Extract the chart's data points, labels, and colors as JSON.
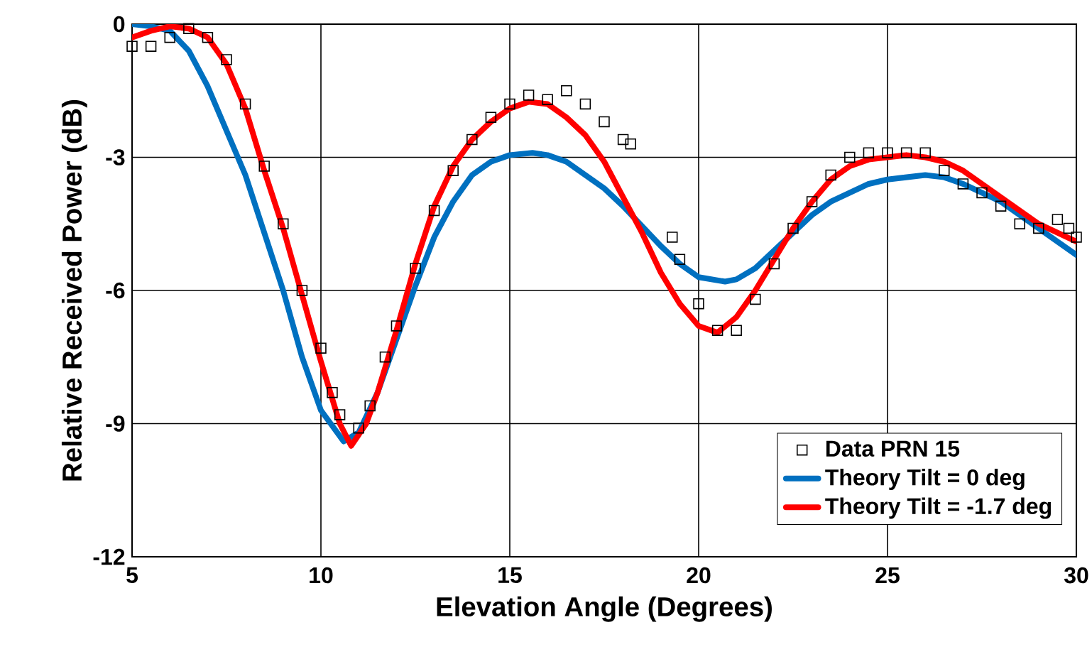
{
  "chart_data": {
    "type": "line",
    "xlabel": "Elevation Angle (Degrees)",
    "ylabel": "Relative Received Power (dB)",
    "xlim": [
      5,
      30
    ],
    "xticks": [
      5,
      10,
      15,
      20,
      25,
      30
    ],
    "ylim": [
      -12,
      0
    ],
    "yticks": [
      0,
      -3,
      -6,
      -9,
      -12
    ],
    "grid": true,
    "legend": "bottom right",
    "series": [
      {
        "name": "Data PRN 15",
        "type": "scatter",
        "marker": "square",
        "color": "#000000",
        "x": [
          5.0,
          5.5,
          6.0,
          6.5,
          7.0,
          7.5,
          8.0,
          8.5,
          9.0,
          9.5,
          10.0,
          10.3,
          10.5,
          11.0,
          11.3,
          11.7,
          12.0,
          12.5,
          13.0,
          13.5,
          14.0,
          14.5,
          15.0,
          15.5,
          16.0,
          16.5,
          17.0,
          17.5,
          18.0,
          18.2,
          18.7,
          19.3,
          19.5,
          20.0,
          20.5,
          21.0,
          21.5,
          22.0,
          22.5,
          23.0,
          23.5,
          24.0,
          24.5,
          25.0,
          25.5,
          26.0,
          26.5,
          27.0,
          27.5,
          28.0,
          28.5,
          29.0,
          29.5,
          29.8,
          30.0
        ],
        "values": [
          -0.5,
          -0.5,
          -0.3,
          -0.1,
          -0.3,
          -0.8,
          -1.8,
          -3.2,
          -4.5,
          -6.0,
          -7.3,
          -8.3,
          -8.8,
          -9.1,
          -8.6,
          -7.5,
          -6.8,
          -5.5,
          -4.2,
          -3.3,
          -2.6,
          -2.1,
          -1.8,
          -1.6,
          -1.7,
          -1.5,
          -1.8,
          -2.2,
          -2.6,
          -2.7,
          null,
          -4.8,
          -5.3,
          -6.3,
          -6.9,
          -6.9,
          -6.2,
          -5.4,
          -4.6,
          -4.0,
          -3.4,
          -3.0,
          -2.9,
          -2.9,
          -2.9,
          -2.9,
          -3.3,
          -3.6,
          -3.8,
          -4.1,
          -4.5,
          -4.6,
          -4.4,
          -4.6,
          -4.8
        ]
      },
      {
        "name": "Theory Tilt = 0 deg",
        "color": "#0070c0",
        "x": [
          5.0,
          5.5,
          6.0,
          6.5,
          7.0,
          7.5,
          8.0,
          8.5,
          9.0,
          9.5,
          10.0,
          10.6,
          11.0,
          11.5,
          12.0,
          12.5,
          13.0,
          13.5,
          14.0,
          14.5,
          15.0,
          15.6,
          16.0,
          16.5,
          17.0,
          17.5,
          18.0,
          18.5,
          19.0,
          19.5,
          20.0,
          20.7,
          21.0,
          21.5,
          22.0,
          22.5,
          23.0,
          23.5,
          24.0,
          24.5,
          25.0,
          26.0,
          26.5,
          27.0,
          27.5,
          28.0,
          28.5,
          29.0,
          29.5,
          30.0
        ],
        "values": [
          0,
          -0.05,
          -0.15,
          -0.6,
          -1.4,
          -2.4,
          -3.4,
          -4.7,
          -6.0,
          -7.5,
          -8.7,
          -9.4,
          -9.2,
          -8.3,
          -7.1,
          -5.9,
          -4.8,
          -4.0,
          -3.4,
          -3.1,
          -2.95,
          -2.9,
          -2.95,
          -3.1,
          -3.4,
          -3.7,
          -4.1,
          -4.55,
          -5.0,
          -5.4,
          -5.7,
          -5.8,
          -5.75,
          -5.5,
          -5.1,
          -4.7,
          -4.3,
          -4.0,
          -3.8,
          -3.6,
          -3.5,
          -3.4,
          -3.45,
          -3.6,
          -3.8,
          -4.0,
          -4.3,
          -4.6,
          -4.9,
          -5.2
        ]
      },
      {
        "name": "Theory Tilt = -1.7 deg",
        "color": "#ff0000",
        "x": [
          5.0,
          5.5,
          6.0,
          6.5,
          7.0,
          7.5,
          8.0,
          8.5,
          9.0,
          9.5,
          10.0,
          10.5,
          10.8,
          11.2,
          11.5,
          12.0,
          12.5,
          13.0,
          13.5,
          14.0,
          14.5,
          15.0,
          15.5,
          16.0,
          16.5,
          17.0,
          17.5,
          18.0,
          18.5,
          19.0,
          19.5,
          20.0,
          20.5,
          21.0,
          21.5,
          22.0,
          22.5,
          23.0,
          23.5,
          24.0,
          24.5,
          25.0,
          25.5,
          26.0,
          26.5,
          27.0,
          27.5,
          28.0,
          28.5,
          29.0,
          29.5,
          30.0
        ],
        "values": [
          -0.3,
          -0.15,
          -0.05,
          -0.1,
          -0.3,
          -0.9,
          -1.9,
          -3.3,
          -4.6,
          -6.1,
          -7.6,
          -9.0,
          -9.5,
          -9.0,
          -8.3,
          -6.9,
          -5.4,
          -4.1,
          -3.2,
          -2.6,
          -2.2,
          -1.9,
          -1.75,
          -1.8,
          -2.1,
          -2.5,
          -3.1,
          -3.9,
          -4.7,
          -5.6,
          -6.3,
          -6.8,
          -6.95,
          -6.6,
          -6.0,
          -5.3,
          -4.6,
          -4.0,
          -3.5,
          -3.2,
          -3.05,
          -3.0,
          -2.95,
          -3.0,
          -3.1,
          -3.3,
          -3.6,
          -3.9,
          -4.2,
          -4.5,
          -4.7,
          -4.9
        ]
      }
    ]
  }
}
